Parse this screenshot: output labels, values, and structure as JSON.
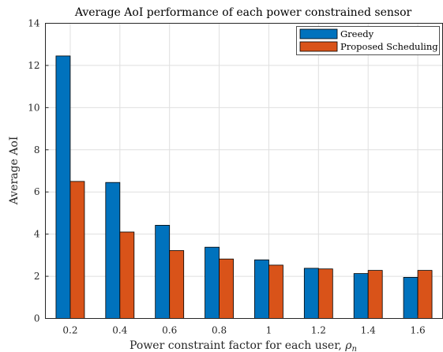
{
  "chart_data": {
    "type": "bar",
    "title": "Average AoI performance of each power constrained sensor",
    "xlabel": "Power constraint factor for each user, ",
    "xlabel_symbol": "ρ",
    "xlabel_subscript": "n",
    "ylabel": "Average AoI",
    "categories": [
      "0.2",
      "0.4",
      "0.6",
      "0.8",
      "1",
      "1.2",
      "1.4",
      "1.6"
    ],
    "ylim": [
      0,
      14
    ],
    "yticks": [
      "0",
      "2",
      "4",
      "6",
      "8",
      "10",
      "12",
      "14"
    ],
    "grid": true,
    "legend_position": "top-right",
    "series": [
      {
        "name": "Greedy",
        "color": "#0072BD",
        "values": [
          12.45,
          6.45,
          4.42,
          3.38,
          2.78,
          2.38,
          2.13,
          1.95
        ]
      },
      {
        "name": "Proposed Scheduling",
        "color": "#D95319",
        "values": [
          6.5,
          4.1,
          3.22,
          2.82,
          2.53,
          2.35,
          2.28,
          2.28
        ]
      }
    ]
  }
}
